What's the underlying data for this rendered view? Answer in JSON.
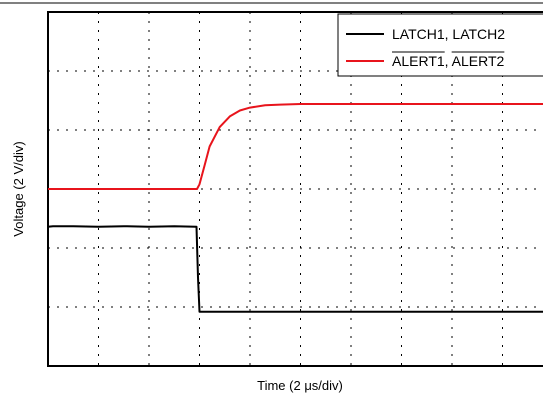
{
  "chart_data": {
    "type": "line",
    "xlabel": "Time (2 μs/div)",
    "ylabel": "Voltage (2 V/div)",
    "x_divisions": 10,
    "y_divisions": 6,
    "x_range_div": [
      0,
      10
    ],
    "y_range_div": [
      0,
      6
    ],
    "grid": true,
    "grid_style": "dashed",
    "legend_position": "top-right",
    "series": [
      {
        "name": "LATCH1, LATCH2",
        "color": "#000000",
        "overline": false,
        "x": [
          0,
          0.1,
          0.5,
          1.0,
          1.5,
          2.0,
          2.5,
          2.94,
          2.97,
          3.0,
          3.5,
          4.0,
          5.0,
          6.0,
          7.0,
          8.0,
          9.0,
          10.0
        ],
        "y": [
          2.36,
          2.37,
          2.37,
          2.36,
          2.37,
          2.36,
          2.37,
          2.36,
          1.5,
          0.92,
          0.92,
          0.92,
          0.92,
          0.92,
          0.92,
          0.92,
          0.92,
          0.92
        ]
      },
      {
        "name": "ALERT1, ALERT2",
        "color": "#e8141c",
        "overline": true,
        "x": [
          0,
          1.0,
          2.0,
          2.95,
          3.0,
          3.1,
          3.2,
          3.4,
          3.6,
          3.8,
          4.0,
          4.3,
          4.6,
          5.0,
          5.5,
          6.0,
          7.0,
          8.0,
          9.0,
          10.0
        ],
        "y": [
          3.0,
          3.0,
          3.0,
          3.0,
          3.08,
          3.4,
          3.72,
          4.05,
          4.23,
          4.33,
          4.38,
          4.42,
          4.43,
          4.44,
          4.44,
          4.44,
          4.44,
          4.44,
          4.44,
          4.44
        ]
      }
    ]
  }
}
